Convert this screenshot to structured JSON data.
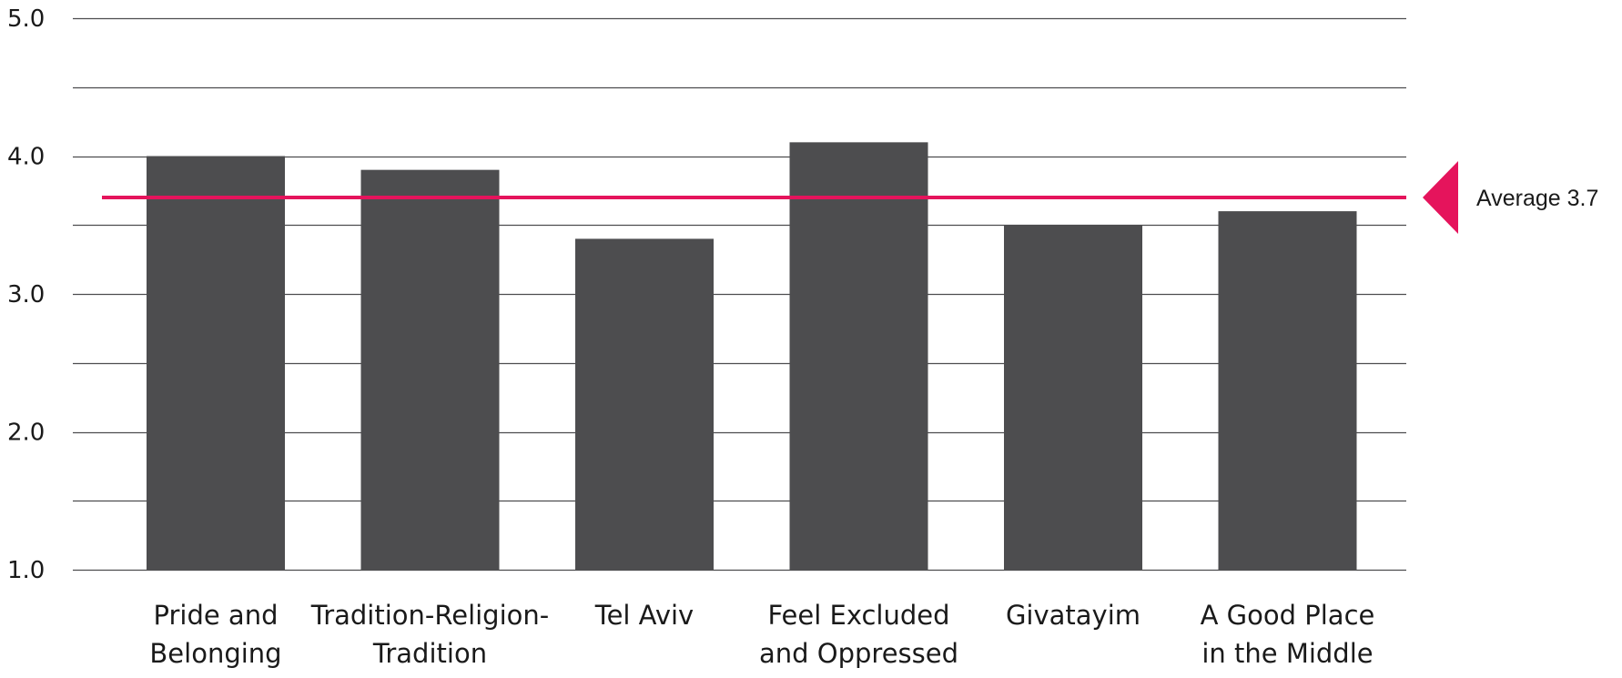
{
  "chart_data": {
    "type": "bar",
    "categories": [
      [
        "Pride and",
        "Belonging"
      ],
      [
        "Tradition-Religion-",
        "Tradition"
      ],
      [
        "Tel Aviv"
      ],
      [
        "Feel Excluded",
        "and Oppressed"
      ],
      [
        "Givatayim"
      ],
      [
        "A Good Place",
        "in the Middle"
      ]
    ],
    "values": [
      4.0,
      3.9,
      3.4,
      4.1,
      3.5,
      3.6
    ],
    "ylim": [
      1.0,
      5.0
    ],
    "y_ticks": [
      "1.0",
      "2.0",
      "3.0",
      "4.0",
      "5.0"
    ],
    "gridlines_every": 0.5,
    "grid": true,
    "average": {
      "value": 3.7,
      "label": "Average 3.7"
    },
    "colors": {
      "bar": "#4d4d4f",
      "average_line": "#e5145c",
      "grid": "#4d4d4f"
    }
  }
}
